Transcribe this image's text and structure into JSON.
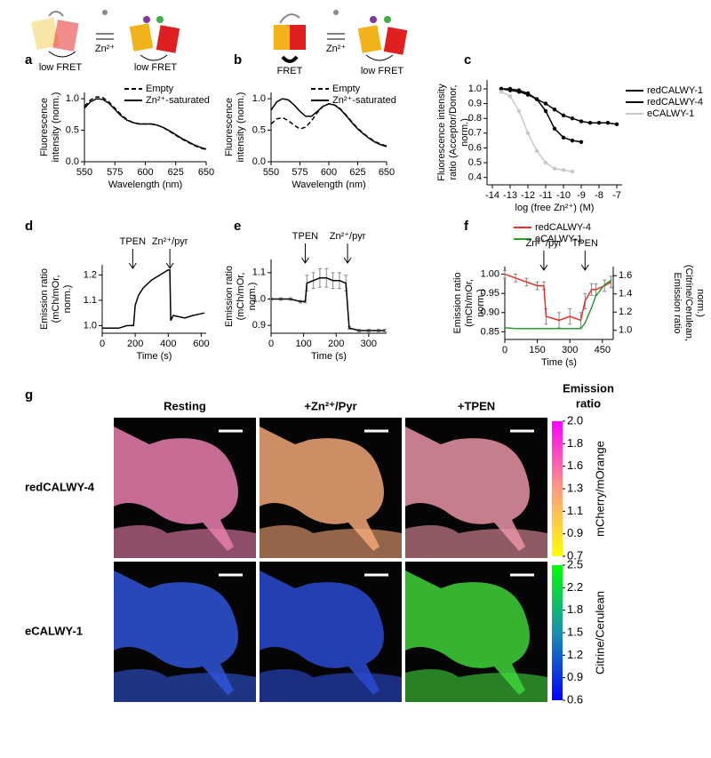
{
  "schematics": [
    {
      "panel": "a",
      "ion": "Zn²⁺",
      "left": "low FRET",
      "right": "low FRET"
    },
    {
      "panel": "b",
      "ion": "Zn²⁺",
      "left": "FRET",
      "right": "low FRET"
    }
  ],
  "chart_data": [
    {
      "type": "line",
      "panel": "a",
      "xlabel": "Wavelength (nm)",
      "ylabel": [
        "Fluorescence",
        "intensity (norm.)"
      ],
      "xlim": [
        550,
        650
      ],
      "xticks": [
        550,
        575,
        600,
        625,
        650
      ],
      "ylim": [
        0,
        1.1
      ],
      "yticks": [
        {
          "value": 0,
          "label": "0.0"
        },
        0.5,
        {
          "value": 1,
          "label": "1.0"
        }
      ],
      "x": [
        550,
        555,
        560,
        565,
        570,
        575,
        580,
        585,
        590,
        595,
        600,
        605,
        610,
        615,
        620,
        625,
        630,
        635,
        640,
        645,
        650
      ],
      "series": [
        {
          "name": "Empty",
          "color": "#000000",
          "line_style": "dashed",
          "values": [
            0.88,
            0.98,
            1.03,
            1.02,
            0.95,
            0.85,
            0.75,
            0.67,
            0.62,
            0.6,
            0.6,
            0.6,
            0.58,
            0.54,
            0.48,
            0.42,
            0.36,
            0.31,
            0.26,
            0.22,
            0.19
          ]
        },
        {
          "name": "Zn²⁺-saturated",
          "color": "#000000",
          "line_style": "solid",
          "values": [
            0.85,
            0.95,
            1.0,
            0.99,
            0.93,
            0.83,
            0.73,
            0.66,
            0.62,
            0.6,
            0.6,
            0.6,
            0.58,
            0.54,
            0.49,
            0.43,
            0.37,
            0.32,
            0.27,
            0.23,
            0.2
          ]
        }
      ]
    },
    {
      "type": "line",
      "panel": "b",
      "xlabel": "Wavelength (nm)",
      "ylabel": [
        "Fluorescence",
        "intensity (norm.)"
      ],
      "xlim": [
        550,
        650
      ],
      "xticks": [
        550,
        575,
        600,
        625,
        650
      ],
      "ylim": [
        0,
        1.1
      ],
      "yticks": [
        {
          "value": 0,
          "label": "0.0"
        },
        0.5,
        {
          "value": 1,
          "label": "1.0"
        }
      ],
      "x": [
        550,
        555,
        560,
        565,
        570,
        575,
        580,
        585,
        590,
        595,
        600,
        605,
        610,
        615,
        620,
        625,
        630,
        635,
        640,
        645,
        650
      ],
      "series": [
        {
          "name": "Empty",
          "color": "#000000",
          "line_style": "dashed",
          "values": [
            0.6,
            0.68,
            0.7,
            0.65,
            0.58,
            0.52,
            0.55,
            0.65,
            0.78,
            0.88,
            0.92,
            0.9,
            0.84,
            0.74,
            0.63,
            0.53,
            0.45,
            0.38,
            0.32,
            0.28,
            0.25
          ]
        },
        {
          "name": "Zn²⁺-saturated",
          "color": "#000000",
          "line_style": "solid",
          "values": [
            0.82,
            0.95,
            1.0,
            0.98,
            0.9,
            0.8,
            0.72,
            0.72,
            0.8,
            0.88,
            0.92,
            0.9,
            0.83,
            0.73,
            0.62,
            0.52,
            0.44,
            0.37,
            0.31,
            0.27,
            0.24
          ]
        }
      ]
    },
    {
      "type": "line",
      "panel": "c",
      "xlabel": "log (free Zn²⁺) (M)",
      "ylabel": [
        "Fluorescence intensity",
        "ratio (Acceptor/Donor,",
        "norm.)"
      ],
      "markers": true,
      "xlim": [
        -14.3,
        -6.7
      ],
      "xticks": [
        -14,
        -13,
        -12,
        -11,
        -10,
        -9,
        -8,
        -7
      ],
      "ylim": [
        0.35,
        1.06
      ],
      "yticks": [
        0.4,
        0.5,
        0.6,
        0.7,
        0.8,
        0.9,
        {
          "value": 1,
          "label": "1.0"
        }
      ],
      "x": [
        -13.5,
        -13,
        -12.5,
        -12,
        -11.5,
        -11,
        -10.5,
        -10,
        -9.5,
        -9,
        -8.5,
        -8,
        -7.5,
        -7
      ],
      "series": [
        {
          "name": "redCALWY-1",
          "color": "#000000",
          "line_style": "solid",
          "values": [
            1.0,
            0.99,
            0.98,
            0.96,
            0.93,
            0.9,
            0.86,
            0.82,
            0.8,
            0.78,
            0.77,
            0.77,
            0.77,
            0.76
          ]
        },
        {
          "name": "redCALWY-4",
          "color": "#000000",
          "line_style": "solid",
          "values": [
            1.0,
            1.0,
            0.99,
            0.97,
            0.93,
            0.85,
            0.73,
            0.67,
            0.65,
            0.64,
            null,
            null,
            null,
            null
          ]
        },
        {
          "name": "eCALWY-1",
          "color": "#c8c8c8",
          "line_style": "solid",
          "values": [
            0.98,
            0.95,
            0.85,
            0.7,
            0.58,
            0.5,
            0.46,
            0.45,
            0.44,
            null,
            null,
            null,
            null,
            null
          ]
        }
      ]
    },
    {
      "type": "line",
      "panel": "d",
      "xlabel": "Time (s)",
      "ylabel": [
        "Emission ratio",
        "(mCh/mOr,",
        "norm.)"
      ],
      "xlim": [
        0,
        630
      ],
      "xticks": [
        0,
        200,
        400,
        600
      ],
      "ylim": [
        0.97,
        1.24
      ],
      "yticks": [
        {
          "value": 1,
          "label": "1.0"
        },
        1.1,
        1.2
      ],
      "annotations": [
        {
          "text": "TPEN",
          "x": 185
        },
        {
          "text": "Zn²⁺/pyr",
          "x": 410
        }
      ],
      "x": [
        0,
        50,
        100,
        150,
        190,
        200,
        220,
        250,
        300,
        350,
        400,
        410,
        415,
        430,
        500,
        550,
        620
      ],
      "series": [
        {
          "name": null,
          "color": "#000000",
          "line_style": "solid",
          "values": [
            0.99,
            0.99,
            0.99,
            1.0,
            1.0,
            1.08,
            1.12,
            1.15,
            1.18,
            1.2,
            1.22,
            1.22,
            1.02,
            1.04,
            1.03,
            1.04,
            1.05
          ]
        }
      ]
    },
    {
      "type": "line",
      "panel": "e",
      "xlabel": "Time (s)",
      "ylabel": [
        "Emission ratio",
        "(mCh/mOr,",
        "norm.)"
      ],
      "xlim": [
        0,
        355
      ],
      "xticks": [
        0,
        100,
        200,
        300
      ],
      "ylim": [
        0.87,
        1.15
      ],
      "yticks": [
        0.9,
        {
          "value": 1,
          "label": "1.0"
        },
        1.1
      ],
      "annotations": [
        {
          "text": "TPEN",
          "x": 105
        },
        {
          "text": "Zn²⁺/pyr",
          "x": 235
        }
      ],
      "x": [
        0,
        30,
        60,
        90,
        105,
        110,
        130,
        150,
        170,
        190,
        210,
        230,
        240,
        270,
        300,
        330,
        350
      ],
      "series": [
        {
          "name": null,
          "color": "#000000",
          "line_style": "solid",
          "values": [
            1.0,
            1.0,
            1.0,
            0.99,
            0.99,
            1.06,
            1.07,
            1.08,
            1.08,
            1.07,
            1.07,
            1.06,
            0.89,
            0.88,
            0.88,
            0.88,
            0.88
          ],
          "errors": [
            0.005,
            0.005,
            0.005,
            0.005,
            0.005,
            0.03,
            0.03,
            0.035,
            0.035,
            0.03,
            0.03,
            0.03,
            0.005,
            0.005,
            0.005,
            0.005,
            0.005
          ]
        }
      ]
    },
    {
      "type": "line",
      "panel": "f",
      "xlabel": "Time (s)",
      "ylabel": [
        "Emission ratio",
        "(mCh/mOr,",
        "norm.)"
      ],
      "y2label": [
        "Emission ratio",
        "(Citrine/Cerulean,",
        "norm.)"
      ],
      "xlim": [
        0,
        500
      ],
      "xticks": [
        0,
        150,
        300,
        450
      ],
      "ylim": [
        0.83,
        1.02
      ],
      "yticks": [
        0.85,
        {
          "value": 0.9,
          "label": "0.90"
        },
        0.95,
        {
          "value": 1,
          "label": "1.00"
        }
      ],
      "y2lim": [
        0.9,
        1.7
      ],
      "y2ticks": [
        {
          "value": 1,
          "label": "1.0"
        },
        1.2,
        1.4,
        1.6
      ],
      "annotations": [
        {
          "text": "Zn²⁺/pyr",
          "x": 180
        },
        {
          "text": "TPEN",
          "x": 370
        }
      ],
      "x": [
        0,
        50,
        100,
        150,
        180,
        190,
        250,
        300,
        350,
        370,
        400,
        420,
        460,
        490
      ],
      "series": [
        {
          "name": "redCALWY-4",
          "color": "#e8302a",
          "line_style": "solid",
          "values": [
            1.0,
            0.99,
            0.98,
            0.97,
            0.97,
            0.89,
            0.88,
            0.89,
            0.88,
            0.93,
            0.96,
            0.96,
            0.97,
            0.98
          ],
          "errors": [
            0.01,
            0.01,
            0.01,
            0.01,
            0.01,
            0.02,
            0.02,
            0.02,
            0.02,
            0.02,
            0.015,
            0.015,
            0.015,
            0.015
          ]
        },
        {
          "name": "eCALWY-1",
          "color": "#2ca02c",
          "line_style": "solid",
          "axis": "y2",
          "values": [
            1.03,
            1.02,
            1.02,
            1.02,
            1.02,
            1.02,
            1.02,
            1.02,
            1.02,
            1.08,
            1.25,
            1.38,
            1.5,
            1.55
          ]
        }
      ]
    }
  ],
  "panel_g": {
    "panel": "g",
    "colorbar_title": [
      "Emission",
      "ratio"
    ],
    "columns": [
      "Resting",
      "+Zn²⁺/Pyr",
      "+TPEN"
    ],
    "rows": [
      "redCALWY-4",
      "eCALWY-1"
    ],
    "colorbars": [
      {
        "label": "mCherry/mOrange",
        "ticks": [
          {
            "value": 2,
            "label": "2.0"
          },
          1.8,
          1.6,
          1.3,
          1.1,
          0.9,
          0.7
        ]
      },
      {
        "label": "Citrine/Cerulean",
        "ticks": [
          2.5,
          2.2,
          1.8,
          1.5,
          1.2,
          0.9,
          0.6
        ]
      }
    ]
  }
}
